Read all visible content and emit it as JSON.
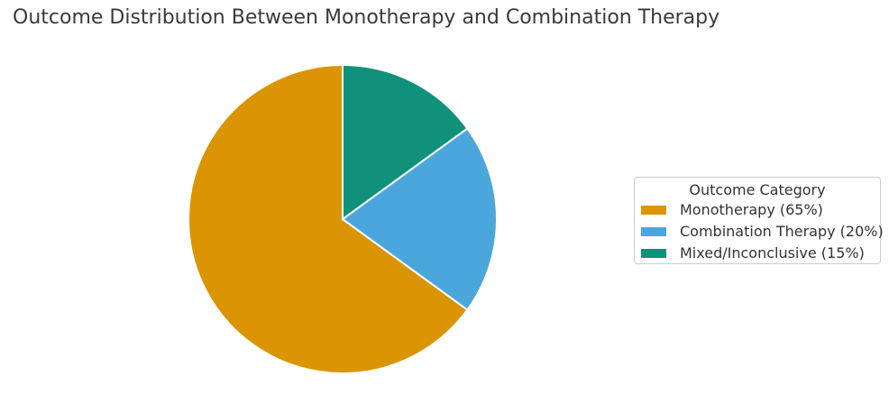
{
  "chart_data": {
    "type": "pie",
    "title": "Outcome Distribution Between Monotherapy and Combination Therapy",
    "slices": [
      {
        "label": "Monotherapy",
        "value": 65,
        "percent_label": "65%",
        "color": "#DB9404"
      },
      {
        "label": "Combination Therapy",
        "value": 20,
        "percent_label": "20%",
        "color": "#4BA7DB"
      },
      {
        "label": "Mixed/Inconclusive",
        "value": 15,
        "percent_label": "15%",
        "color": "#0F917C"
      }
    ],
    "start_angle_deg": 90,
    "direction": "counterclockwise",
    "wedge_edge_color": "#ffffff",
    "legend": {
      "title": "Outcome Category",
      "position": "center right",
      "entries": [
        {
          "label": "Monotherapy (65%)",
          "color": "#DB9404"
        },
        {
          "label": "Combination Therapy (20%)",
          "color": "#4BA7DB"
        },
        {
          "label": "Mixed/Inconclusive (15%)",
          "color": "#0F917C"
        }
      ]
    },
    "layout_hints": {
      "background": "#ffffff",
      "title_color": "#3a3a3a",
      "legend_text_color": "#333333",
      "axes": "none"
    }
  }
}
